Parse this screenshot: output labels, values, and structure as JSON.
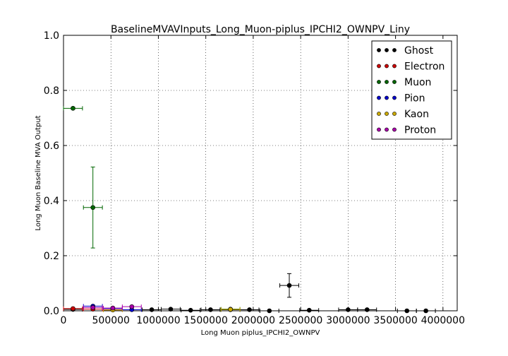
{
  "chart_data": {
    "type": "scatter",
    "title": "BaselineMVAVInputs_Long_Muon-piplus_IPCHI2_OWNPV_Liny",
    "xlabel": "Long Muon piplus_IPCHI2_OWNPV",
    "ylabel": "Long Muon Baseline MVA Output",
    "xlim": [
      0,
      4150000
    ],
    "ylim": [
      0,
      1.0
    ],
    "xticks": [
      0,
      500000,
      1000000,
      1500000,
      2000000,
      2500000,
      3000000,
      3500000,
      4000000
    ],
    "xtick_labels": [
      "0",
      "500000",
      "1000000",
      "1500000",
      "2000000",
      "2500000",
      "3000000",
      "3500000",
      "4000000"
    ],
    "yticks": [
      0.0,
      0.2,
      0.4,
      0.6,
      0.8,
      1.0
    ],
    "ytick_labels": [
      "0.0",
      "0.2",
      "0.4",
      "0.6",
      "0.8",
      "1.0"
    ],
    "grid": true,
    "legend_position": "top-right",
    "series": [
      {
        "name": "Ghost",
        "color": "#000000",
        "points": [
          {
            "x": 100000,
            "y": 0.005,
            "xerr": 100000,
            "yerr": 0.003
          },
          {
            "x": 930000,
            "y": 0.004,
            "xerr": 100000,
            "yerr": 0.003
          },
          {
            "x": 1130000,
            "y": 0.006,
            "xerr": 100000,
            "yerr": 0.003
          },
          {
            "x": 1340000,
            "y": 0.002,
            "xerr": 100000,
            "yerr": 0.002
          },
          {
            "x": 1550000,
            "y": 0.004,
            "xerr": 100000,
            "yerr": 0.003
          },
          {
            "x": 1760000,
            "y": 0.004,
            "xerr": 100000,
            "yerr": 0.003
          },
          {
            "x": 1960000,
            "y": 0.004,
            "xerr": 100000,
            "yerr": 0.003
          },
          {
            "x": 2170000,
            "y": 0.0,
            "xerr": 100000,
            "yerr": 0.0
          },
          {
            "x": 2380000,
            "y": 0.092,
            "xerr": 100000,
            "yerr": 0.043
          },
          {
            "x": 2590000,
            "y": 0.002,
            "xerr": 100000,
            "yerr": 0.002
          },
          {
            "x": 3000000,
            "y": 0.004,
            "xerr": 100000,
            "yerr": 0.003
          },
          {
            "x": 3200000,
            "y": 0.004,
            "xerr": 100000,
            "yerr": 0.003
          },
          {
            "x": 3620000,
            "y": 0.0,
            "xerr": 100000,
            "yerr": 0.0
          },
          {
            "x": 3820000,
            "y": 0.0,
            "xerr": 100000,
            "yerr": 0.0
          }
        ]
      },
      {
        "name": "Electron",
        "color": "#cc0000",
        "points": [
          {
            "x": 100000,
            "y": 0.008,
            "xerr": 100000,
            "yerr": 0.002
          },
          {
            "x": 310000,
            "y": 0.006,
            "xerr": 100000,
            "yerr": 0.002
          },
          {
            "x": 520000,
            "y": 0.004,
            "xerr": 100000,
            "yerr": 0.002
          }
        ]
      },
      {
        "name": "Muon",
        "color": "#006600",
        "points": [
          {
            "x": 100000,
            "y": 0.735,
            "xerr": 100000,
            "yerr": 0.004
          },
          {
            "x": 310000,
            "y": 0.375,
            "xerr": 100000,
            "yerr": 0.147
          },
          {
            "x": 1760000,
            "y": 0.006,
            "xerr": 100000,
            "yerr": 0.003
          }
        ]
      },
      {
        "name": "Pion",
        "color": "#0000cc",
        "points": [
          {
            "x": 310000,
            "y": 0.017,
            "xerr": 100000,
            "yerr": 0.003
          },
          {
            "x": 520000,
            "y": 0.008,
            "xerr": 100000,
            "yerr": 0.003
          },
          {
            "x": 720000,
            "y": 0.004,
            "xerr": 100000,
            "yerr": 0.002
          }
        ]
      },
      {
        "name": "Kaon",
        "color": "#ccaa00",
        "points": [
          {
            "x": 520000,
            "y": 0.003,
            "xerr": 100000,
            "yerr": 0.002
          },
          {
            "x": 1760000,
            "y": 0.005,
            "xerr": 100000,
            "yerr": 0.002
          }
        ]
      },
      {
        "name": "Proton",
        "color": "#aa00aa",
        "points": [
          {
            "x": 310000,
            "y": 0.012,
            "xerr": 100000,
            "yerr": 0.003
          },
          {
            "x": 520000,
            "y": 0.01,
            "xerr": 100000,
            "yerr": 0.003
          },
          {
            "x": 720000,
            "y": 0.015,
            "xerr": 100000,
            "yerr": 0.003
          }
        ]
      }
    ]
  }
}
